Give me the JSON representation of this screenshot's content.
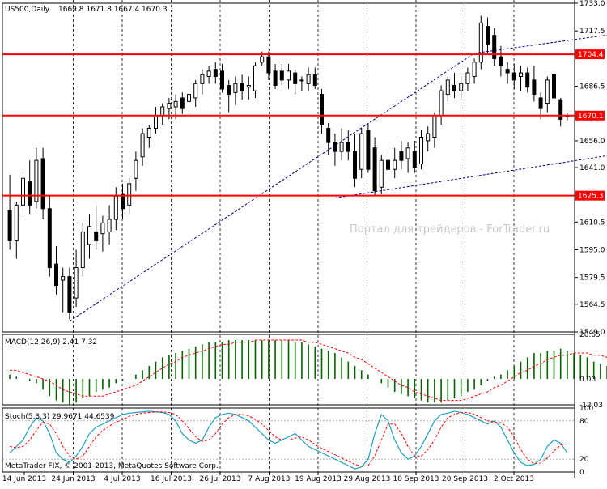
{
  "header": {
    "symbol": "US500,Daily",
    "ohlc": "1669.8 1671.8 1667.4 1670.3"
  },
  "watermark": "Портал для трейдеров - ForTrader.ru",
  "footer": "MetaTrader FIX, © 2001-2013, MetaQuotes Software Corp.",
  "colors": {
    "background": "#ffffff",
    "candle_bull": "#ffffff",
    "candle_bear": "#000000",
    "level_line": "#ff0000",
    "level_label_bg": "#ff0000",
    "trend_line": "#00008b",
    "macd_hist": "#006400",
    "macd_signal": "#ff0000",
    "stoch_main": "#20a0c0",
    "stoch_signal": "#ff0000",
    "grid": "#000000"
  },
  "chart_data": [
    {
      "type": "candlestick",
      "panel": "price",
      "title": "US500,Daily",
      "ylim": [
        1549.0,
        1733.0
      ],
      "y_ticks": [
        1733.0,
        1717.5,
        1686.5,
        1656.0,
        1641.0,
        1625.3,
        1610.5,
        1595.0,
        1579.5,
        1564.5,
        1549.0
      ],
      "x_ticks": [
        "14 Jun 2013",
        "24 Jun 2013",
        "4 Jul 2013",
        "16 Jul 2013",
        "26 Jul 2013",
        "7 Aug 2013",
        "19 Aug 2013",
        "29 Aug 2013",
        "10 Sep 2013",
        "20 Sep 2013",
        "2 Oct 2013"
      ],
      "levels": [
        {
          "label": "1704.4",
          "value": 1704.4
        },
        {
          "label": "1670.1",
          "value": 1670.1
        },
        {
          "label": "1625.3",
          "value": 1625.3
        }
      ],
      "trendlines": [
        {
          "from": [
            9,
            1555
          ],
          "to": [
            70,
            1705
          ]
        },
        {
          "from": [
            70,
            1705
          ],
          "to": [
            129,
            1735
          ]
        },
        {
          "from": [
            49,
            1624
          ],
          "to": [
            134,
            1673
          ]
        }
      ],
      "candles": [
        {
          "o": 1617,
          "h": 1637,
          "l": 1595,
          "c": 1600
        },
        {
          "o": 1600,
          "h": 1622,
          "l": 1590,
          "c": 1620
        },
        {
          "o": 1620,
          "h": 1640,
          "l": 1612,
          "c": 1635
        },
        {
          "o": 1633,
          "h": 1645,
          "l": 1615,
          "c": 1620
        },
        {
          "o": 1622,
          "h": 1652,
          "l": 1618,
          "c": 1645
        },
        {
          "o": 1646,
          "h": 1652,
          "l": 1612,
          "c": 1618
        },
        {
          "o": 1618,
          "h": 1625,
          "l": 1580,
          "c": 1585
        },
        {
          "o": 1587,
          "h": 1597,
          "l": 1570,
          "c": 1575
        },
        {
          "o": 1578,
          "h": 1585,
          "l": 1560,
          "c": 1580
        },
        {
          "o": 1580,
          "h": 1585,
          "l": 1556,
          "c": 1560
        },
        {
          "o": 1568,
          "h": 1595,
          "l": 1563,
          "c": 1585
        },
        {
          "o": 1585,
          "h": 1610,
          "l": 1580,
          "c": 1605
        },
        {
          "o": 1598,
          "h": 1615,
          "l": 1590,
          "c": 1608
        },
        {
          "o": 1605,
          "h": 1620,
          "l": 1595,
          "c": 1600
        },
        {
          "o": 1604,
          "h": 1614,
          "l": 1594,
          "c": 1610
        },
        {
          "o": 1605,
          "h": 1620,
          "l": 1598,
          "c": 1612
        },
        {
          "o": 1612,
          "h": 1630,
          "l": 1606,
          "c": 1625
        },
        {
          "o": 1626,
          "h": 1632,
          "l": 1612,
          "c": 1618
        },
        {
          "o": 1620,
          "h": 1635,
          "l": 1615,
          "c": 1632
        },
        {
          "o": 1635,
          "h": 1650,
          "l": 1628,
          "c": 1645
        },
        {
          "o": 1647,
          "h": 1663,
          "l": 1642,
          "c": 1660
        },
        {
          "o": 1658,
          "h": 1665,
          "l": 1652,
          "c": 1663
        },
        {
          "o": 1663,
          "h": 1675,
          "l": 1660,
          "c": 1670
        },
        {
          "o": 1670,
          "h": 1677,
          "l": 1665,
          "c": 1675
        },
        {
          "o": 1674,
          "h": 1680,
          "l": 1668,
          "c": 1677
        },
        {
          "o": 1675,
          "h": 1682,
          "l": 1668,
          "c": 1678
        },
        {
          "o": 1680,
          "h": 1683,
          "l": 1671,
          "c": 1674
        },
        {
          "o": 1678,
          "h": 1685,
          "l": 1670,
          "c": 1682
        },
        {
          "o": 1680,
          "h": 1690,
          "l": 1675,
          "c": 1688
        },
        {
          "o": 1688,
          "h": 1696,
          "l": 1682,
          "c": 1693
        },
        {
          "o": 1692,
          "h": 1698,
          "l": 1688,
          "c": 1695
        },
        {
          "o": 1696,
          "h": 1700,
          "l": 1688,
          "c": 1692
        },
        {
          "o": 1695,
          "h": 1699,
          "l": 1683,
          "c": 1685
        },
        {
          "o": 1687,
          "h": 1690,
          "l": 1672,
          "c": 1682
        },
        {
          "o": 1683,
          "h": 1692,
          "l": 1676,
          "c": 1688
        },
        {
          "o": 1688,
          "h": 1693,
          "l": 1679,
          "c": 1684
        },
        {
          "o": 1686,
          "h": 1692,
          "l": 1679,
          "c": 1687
        },
        {
          "o": 1684,
          "h": 1700,
          "l": 1680,
          "c": 1698
        },
        {
          "o": 1700,
          "h": 1706,
          "l": 1698,
          "c": 1703
        },
        {
          "o": 1703,
          "h": 1706,
          "l": 1690,
          "c": 1694
        },
        {
          "o": 1695,
          "h": 1699,
          "l": 1685,
          "c": 1687
        },
        {
          "o": 1695,
          "h": 1699,
          "l": 1687,
          "c": 1690
        },
        {
          "o": 1690,
          "h": 1699,
          "l": 1685,
          "c": 1695
        },
        {
          "o": 1694,
          "h": 1696,
          "l": 1682,
          "c": 1688
        },
        {
          "o": 1690,
          "h": 1692,
          "l": 1684,
          "c": 1690
        },
        {
          "o": 1688,
          "h": 1697,
          "l": 1684,
          "c": 1693
        },
        {
          "o": 1693,
          "h": 1697,
          "l": 1685,
          "c": 1687
        },
        {
          "o": 1682,
          "h": 1685,
          "l": 1660,
          "c": 1665
        },
        {
          "o": 1663,
          "h": 1666,
          "l": 1648,
          "c": 1655
        },
        {
          "o": 1655,
          "h": 1660,
          "l": 1642,
          "c": 1650
        },
        {
          "o": 1650,
          "h": 1663,
          "l": 1645,
          "c": 1655
        },
        {
          "o": 1655,
          "h": 1662,
          "l": 1645,
          "c": 1650
        },
        {
          "o": 1650,
          "h": 1660,
          "l": 1630,
          "c": 1635
        },
        {
          "o": 1640,
          "h": 1663,
          "l": 1635,
          "c": 1660
        },
        {
          "o": 1662,
          "h": 1666,
          "l": 1638,
          "c": 1640
        },
        {
          "o": 1652,
          "h": 1658,
          "l": 1625,
          "c": 1628
        },
        {
          "o": 1630,
          "h": 1648,
          "l": 1626,
          "c": 1645
        },
        {
          "o": 1645,
          "h": 1650,
          "l": 1631,
          "c": 1640
        },
        {
          "o": 1640,
          "h": 1652,
          "l": 1635,
          "c": 1645
        },
        {
          "o": 1650,
          "h": 1656,
          "l": 1640,
          "c": 1645
        },
        {
          "o": 1646,
          "h": 1655,
          "l": 1638,
          "c": 1652
        },
        {
          "o": 1650,
          "h": 1656,
          "l": 1638,
          "c": 1641
        },
        {
          "o": 1643,
          "h": 1662,
          "l": 1640,
          "c": 1658
        },
        {
          "o": 1656,
          "h": 1664,
          "l": 1650,
          "c": 1660
        },
        {
          "o": 1658,
          "h": 1672,
          "l": 1652,
          "c": 1670
        },
        {
          "o": 1670,
          "h": 1687,
          "l": 1665,
          "c": 1684
        },
        {
          "o": 1682,
          "h": 1692,
          "l": 1678,
          "c": 1690
        },
        {
          "o": 1687,
          "h": 1694,
          "l": 1680,
          "c": 1684
        },
        {
          "o": 1684,
          "h": 1692,
          "l": 1680,
          "c": 1688
        },
        {
          "o": 1688,
          "h": 1697,
          "l": 1684,
          "c": 1694
        },
        {
          "o": 1692,
          "h": 1702,
          "l": 1688,
          "c": 1700
        },
        {
          "o": 1700,
          "h": 1726,
          "l": 1696,
          "c": 1722
        },
        {
          "o": 1720,
          "h": 1725,
          "l": 1705,
          "c": 1710
        },
        {
          "o": 1715,
          "h": 1719,
          "l": 1698,
          "c": 1702
        },
        {
          "o": 1703,
          "h": 1709,
          "l": 1692,
          "c": 1698
        },
        {
          "o": 1696,
          "h": 1700,
          "l": 1688,
          "c": 1694
        },
        {
          "o": 1694,
          "h": 1699,
          "l": 1685,
          "c": 1690
        },
        {
          "o": 1692,
          "h": 1698,
          "l": 1684,
          "c": 1694
        },
        {
          "o": 1694,
          "h": 1697,
          "l": 1683,
          "c": 1686
        },
        {
          "o": 1690,
          "h": 1698,
          "l": 1678,
          "c": 1682
        },
        {
          "o": 1680,
          "h": 1683,
          "l": 1668,
          "c": 1674
        },
        {
          "o": 1677,
          "h": 1692,
          "l": 1672,
          "c": 1690
        },
        {
          "o": 1693,
          "h": 1694,
          "l": 1678,
          "c": 1680
        },
        {
          "o": 1679,
          "h": 1680,
          "l": 1664,
          "c": 1668
        },
        {
          "o": 1669.8,
          "h": 1671.8,
          "l": 1667.4,
          "c": 1670.3
        }
      ]
    },
    {
      "type": "bar",
      "panel": "macd",
      "title": "MACD(12,26,9) 2.41 7.32",
      "ylim": [
        -12.03,
        20.65
      ],
      "y_ticks": [
        20.65,
        0.0,
        -12.03
      ],
      "series": [
        {
          "name": "MACD",
          "values": [
            2,
            1,
            0,
            -1,
            -2,
            -5,
            -8,
            -10,
            -11,
            -12,
            -11,
            -9,
            -8,
            -6,
            -5,
            -4,
            -2,
            -1,
            0,
            2,
            4,
            6,
            8,
            10,
            11,
            12,
            13,
            14,
            15,
            16,
            17,
            17,
            17,
            18,
            18,
            18,
            18,
            18,
            18,
            18,
            18,
            18,
            18,
            17,
            17,
            16,
            15,
            14,
            13,
            12,
            10,
            8,
            6,
            4,
            2,
            0,
            -2,
            -4,
            -6,
            -7,
            -8,
            -9,
            -10,
            -11,
            -11,
            -11,
            -10,
            -9,
            -8,
            -6,
            -5,
            -3,
            -1,
            1,
            2,
            4,
            6,
            8,
            10,
            12,
            12,
            13,
            13,
            14,
            13,
            12,
            11,
            10,
            8,
            7,
            6,
            5,
            4,
            3
          ]
        },
        {
          "name": "Signal",
          "values": [
            4,
            4,
            3,
            2,
            1,
            0,
            -1,
            -3,
            -5,
            -6,
            -7,
            -8,
            -8,
            -8,
            -8,
            -7,
            -6,
            -5,
            -4,
            -3,
            -1,
            1,
            3,
            5,
            7,
            8,
            10,
            11,
            12,
            13,
            14,
            15,
            16,
            16,
            17,
            17,
            17,
            18,
            18,
            18,
            18,
            18,
            18,
            18,
            18,
            17,
            17,
            16,
            15,
            14,
            13,
            12,
            10,
            9,
            7,
            5,
            3,
            1,
            -1,
            -3,
            -4,
            -6,
            -7,
            -8,
            -9,
            -10,
            -10,
            -10,
            -10,
            -9,
            -8,
            -7,
            -6,
            -4,
            -3,
            -1,
            1,
            3,
            4,
            6,
            7,
            9,
            10,
            11,
            11,
            12,
            12,
            12,
            11,
            11,
            10,
            9,
            8,
            7
          ]
        }
      ]
    },
    {
      "type": "line",
      "panel": "stochastic",
      "title": "Stoch(5,3,3) 29.9671 44.6539",
      "ylim": [
        0,
        100
      ],
      "y_ticks": [
        100,
        80,
        20,
        0
      ],
      "series": [
        {
          "name": "%K",
          "values": [
            30,
            40,
            50,
            70,
            85,
            80,
            60,
            30,
            20,
            15,
            25,
            40,
            60,
            70,
            75,
            80,
            85,
            90,
            92,
            93,
            94,
            95,
            94,
            93,
            90,
            80,
            60,
            50,
            45,
            50,
            70,
            85,
            90,
            92,
            90,
            85,
            80,
            70,
            60,
            50,
            45,
            50,
            55,
            60,
            50,
            40,
            35,
            30,
            25,
            20,
            15,
            10,
            5,
            8,
            20,
            60,
            90,
            80,
            50,
            30,
            20,
            25,
            40,
            60,
            80,
            90,
            92,
            95,
            93,
            90,
            85,
            80,
            75,
            80,
            70,
            50,
            30,
            15,
            10,
            12,
            20,
            40,
            50,
            45,
            30
          ]
        },
        {
          "name": "%D",
          "values": [
            40,
            38,
            40,
            50,
            65,
            78,
            75,
            60,
            40,
            25,
            20,
            25,
            40,
            55,
            65,
            72,
            78,
            82,
            87,
            90,
            92,
            93,
            94,
            94,
            93,
            90,
            80,
            68,
            55,
            48,
            50,
            60,
            75,
            85,
            90,
            90,
            88,
            82,
            75,
            65,
            55,
            50,
            50,
            53,
            55,
            50,
            43,
            37,
            32,
            27,
            22,
            17,
            12,
            9,
            10,
            25,
            50,
            75,
            75,
            60,
            40,
            25,
            25,
            35,
            50,
            70,
            85,
            90,
            93,
            93,
            90,
            85,
            80,
            78,
            77,
            70,
            55,
            35,
            20,
            13,
            14,
            22,
            33,
            42,
            44
          ]
        }
      ]
    }
  ]
}
